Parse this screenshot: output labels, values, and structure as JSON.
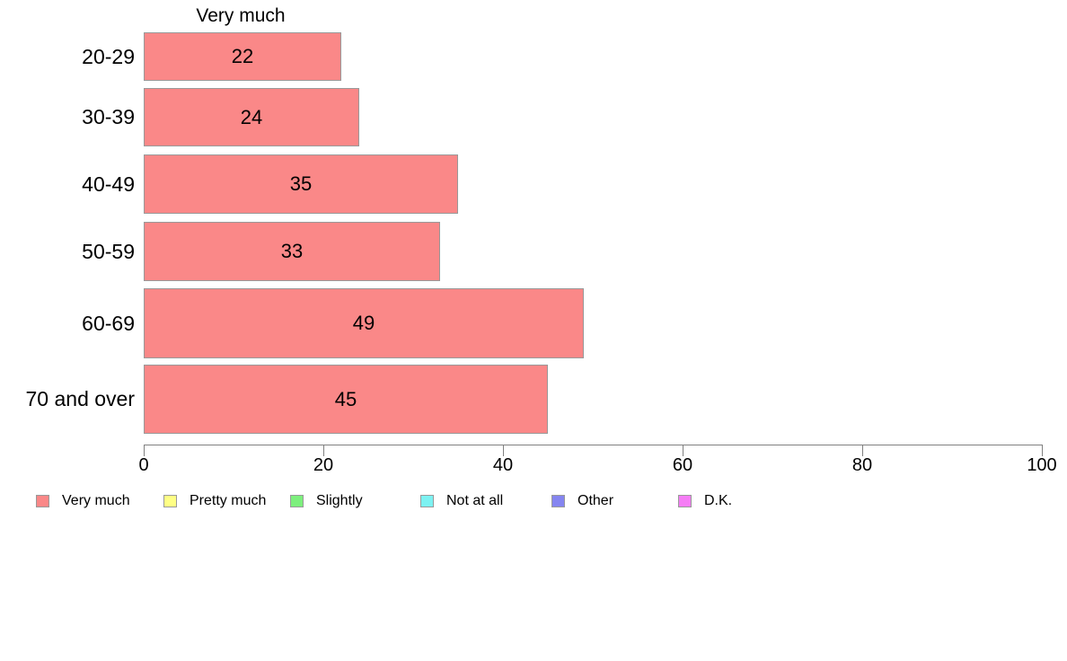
{
  "chart_data": {
    "type": "bar",
    "orientation": "horizontal",
    "title": "Very much",
    "categories": [
      "20-29",
      "30-39",
      "40-49",
      "50-59",
      "60-69",
      "70 and over"
    ],
    "series": [
      {
        "name": "Very much",
        "values": [
          22,
          24,
          35,
          33,
          49,
          45
        ],
        "fill_color": "#fa8888",
        "border_color": "#999999"
      }
    ],
    "value_labels": "inside-center",
    "xlabel": "",
    "ylabel": "",
    "xlim": [
      0,
      100
    ],
    "x_ticks": [
      0,
      20,
      40,
      60,
      80,
      100
    ],
    "grid": false,
    "legend_position": "bottom-left",
    "legend": [
      {
        "label": "Very much",
        "color": "#fa8888"
      },
      {
        "label": "Pretty much",
        "color": "#ffff85"
      },
      {
        "label": "Slightly",
        "color": "#7def7d"
      },
      {
        "label": "Not at all",
        "color": "#7df2f2"
      },
      {
        "label": "Other",
        "color": "#8585f0"
      },
      {
        "label": "D.K.",
        "color": "#f57df5"
      }
    ],
    "axis_color": "#808080",
    "text_color": "#000000",
    "background_color": "#ffffff"
  }
}
